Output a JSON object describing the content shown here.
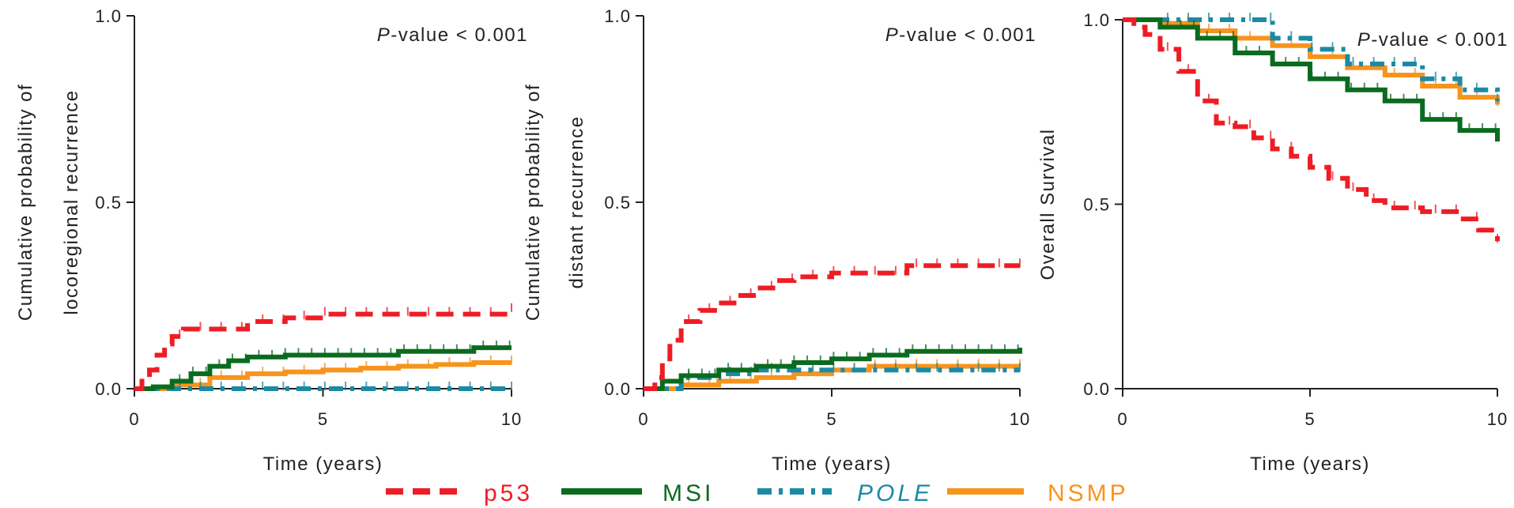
{
  "legend": [
    {
      "label": "p53",
      "color": "#ee1c25",
      "dash": "dash",
      "italic": false
    },
    {
      "label": "MSI",
      "color": "#0a6b1f",
      "dash": "solid",
      "italic": false
    },
    {
      "label": "POLE",
      "color": "#1a8aa6",
      "dash": "dashdot",
      "italic": true
    },
    {
      "label": "NSMP",
      "color": "#f7941d",
      "dash": "solid",
      "italic": false
    }
  ],
  "chart_data": [
    {
      "type": "line",
      "ylabel": [
        "Cumulative probability of",
        "locoregional recurrence"
      ],
      "xlabel": "Time (years)",
      "annotation": {
        "italic": "P",
        "text": "-value < 0.001"
      },
      "xlim": [
        0,
        10
      ],
      "ylim": [
        0,
        1
      ],
      "xticks": [
        "0",
        "5",
        "10"
      ],
      "yticks": [
        "0.0",
        "0.5",
        "1.0"
      ],
      "series": [
        {
          "name": "p53",
          "step": true,
          "x": [
            0,
            0.2,
            0.4,
            0.6,
            0.8,
            1.0,
            1.3,
            2.0,
            3.0,
            4.0,
            5.0,
            7.0,
            10.0
          ],
          "y": [
            0,
            0.02,
            0.05,
            0.09,
            0.12,
            0.14,
            0.16,
            0.16,
            0.18,
            0.19,
            0.2,
            0.2,
            0.21
          ]
        },
        {
          "name": "MSI",
          "step": true,
          "x": [
            0,
            0.5,
            1.0,
            1.5,
            2.0,
            2.5,
            3.0,
            4.0,
            5.0,
            7.0,
            9.0,
            10.0
          ],
          "y": [
            0,
            0.005,
            0.02,
            0.04,
            0.06,
            0.075,
            0.085,
            0.09,
            0.09,
            0.1,
            0.11,
            0.11
          ]
        },
        {
          "name": "POLE",
          "step": true,
          "x": [
            0,
            1.0,
            10.0
          ],
          "y": [
            0,
            0,
            0
          ]
        },
        {
          "name": "NSMP",
          "step": true,
          "x": [
            0,
            1.0,
            2.0,
            3.0,
            4.0,
            5.0,
            6.0,
            7.0,
            8.0,
            9.0,
            10.0
          ],
          "y": [
            0,
            0.01,
            0.03,
            0.04,
            0.045,
            0.05,
            0.055,
            0.06,
            0.065,
            0.07,
            0.07
          ]
        }
      ]
    },
    {
      "type": "line",
      "ylabel": [
        "Cumulative probability of",
        "distant recurrence"
      ],
      "xlabel": "Time (years)",
      "annotation": {
        "italic": "P",
        "text": "-value < 0.001"
      },
      "xlim": [
        0,
        10
      ],
      "ylim": [
        0,
        1
      ],
      "xticks": [
        "0",
        "5",
        "10"
      ],
      "yticks": [
        "0.0",
        "0.5",
        "1.0"
      ],
      "series": [
        {
          "name": "p53",
          "step": true,
          "x": [
            0,
            0.3,
            0.5,
            0.7,
            1.0,
            1.5,
            2.0,
            2.5,
            3.0,
            3.5,
            4.0,
            5.0,
            6.0,
            7.0,
            10.0
          ],
          "y": [
            0,
            0.03,
            0.08,
            0.13,
            0.18,
            0.21,
            0.23,
            0.25,
            0.27,
            0.29,
            0.3,
            0.31,
            0.31,
            0.33,
            0.33
          ]
        },
        {
          "name": "MSI",
          "step": true,
          "x": [
            0,
            0.5,
            1.0,
            2.0,
            3.0,
            4.0,
            5.0,
            6.0,
            7.0,
            8.0,
            9.0,
            10.0
          ],
          "y": [
            0,
            0.02,
            0.035,
            0.05,
            0.06,
            0.07,
            0.08,
            0.09,
            0.1,
            0.1,
            0.1,
            0.11
          ]
        },
        {
          "name": "POLE",
          "step": true,
          "x": [
            0,
            1.0,
            2.0,
            3.0,
            10.0
          ],
          "y": [
            0,
            0.03,
            0.04,
            0.05,
            0.05
          ]
        },
        {
          "name": "NSMP",
          "step": true,
          "x": [
            0,
            1.0,
            2.0,
            3.0,
            4.0,
            5.0,
            6.0,
            7.0,
            10.0
          ],
          "y": [
            0,
            0.01,
            0.02,
            0.03,
            0.04,
            0.05,
            0.06,
            0.06,
            0.06
          ]
        }
      ]
    },
    {
      "type": "line",
      "ylabel": [
        "Overall Survival"
      ],
      "xlabel": "Time (years)",
      "annotation": {
        "italic": "P",
        "text": "-value < 0.001"
      },
      "xlim": [
        0,
        10
      ],
      "ylim": [
        0,
        1
      ],
      "xticks": [
        "0",
        "5",
        "10"
      ],
      "yticks": [
        "0.0",
        "0.5",
        "1.0"
      ],
      "series": [
        {
          "name": "p53",
          "step": true,
          "x": [
            0,
            0.3,
            0.6,
            1.0,
            1.5,
            2.0,
            2.5,
            3.0,
            3.5,
            4.0,
            4.5,
            5.0,
            5.5,
            6.0,
            6.5,
            7.0,
            8.0,
            9.0,
            9.5,
            10.0
          ],
          "y": [
            1.0,
            0.98,
            0.96,
            0.92,
            0.86,
            0.78,
            0.72,
            0.71,
            0.68,
            0.65,
            0.63,
            0.6,
            0.57,
            0.54,
            0.51,
            0.49,
            0.48,
            0.46,
            0.43,
            0.4
          ]
        },
        {
          "name": "MSI",
          "step": true,
          "x": [
            0,
            1.0,
            2.0,
            3.0,
            4.0,
            5.0,
            6.0,
            7.0,
            8.0,
            9.0,
            10.0
          ],
          "y": [
            1.0,
            0.98,
            0.95,
            0.91,
            0.88,
            0.84,
            0.81,
            0.78,
            0.73,
            0.7,
            0.67
          ]
        },
        {
          "name": "POLE",
          "step": true,
          "x": [
            0,
            2.0,
            4.0,
            5.0,
            6.0,
            8.0,
            9.0,
            10.0
          ],
          "y": [
            1.0,
            1.0,
            0.95,
            0.92,
            0.88,
            0.84,
            0.81,
            0.78
          ]
        },
        {
          "name": "NSMP",
          "step": true,
          "x": [
            0,
            1.0,
            2.0,
            3.0,
            4.0,
            5.0,
            6.0,
            7.0,
            8.0,
            9.0,
            10.0
          ],
          "y": [
            1.0,
            0.99,
            0.97,
            0.95,
            0.93,
            0.9,
            0.87,
            0.85,
            0.82,
            0.79,
            0.77
          ]
        }
      ]
    }
  ]
}
